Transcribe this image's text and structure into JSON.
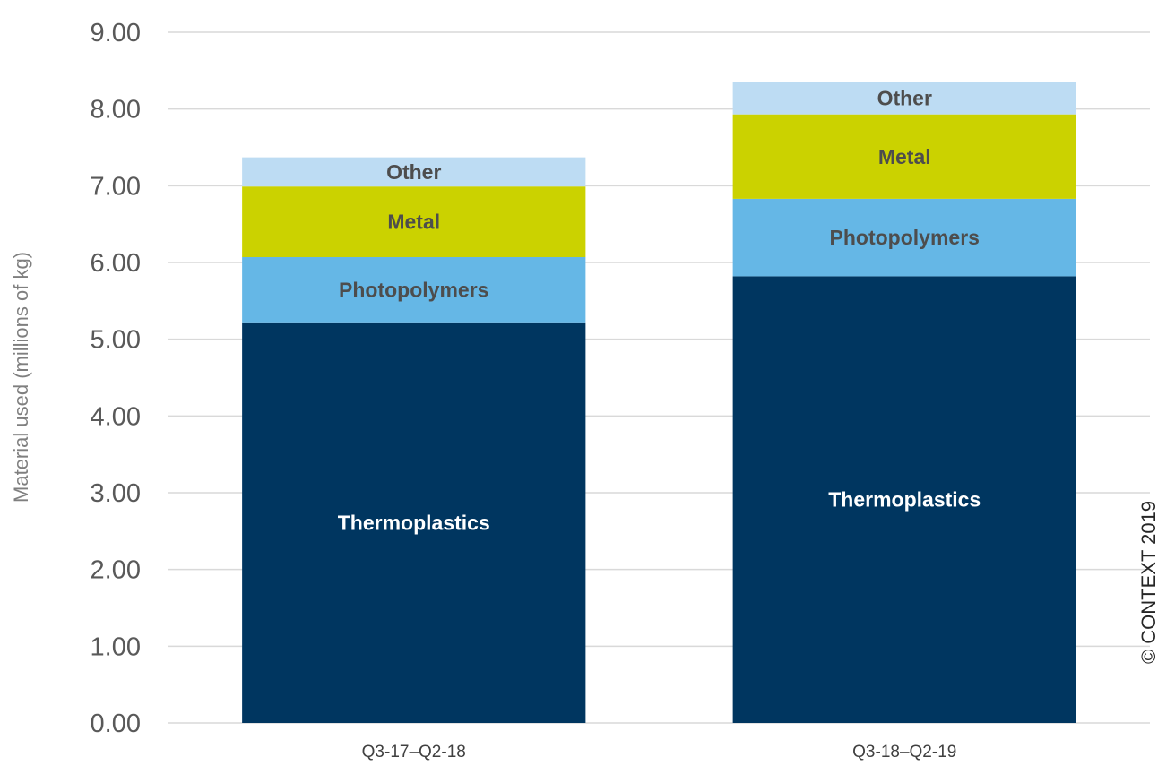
{
  "chart_data": {
    "type": "bar",
    "stacked": true,
    "categories": [
      "Q3-17–Q2-18",
      "Q3-18–Q2-19"
    ],
    "series": [
      {
        "name": "Thermoplastics",
        "values": [
          5.22,
          5.82
        ],
        "color": "#003660",
        "label_color": "#ffffff"
      },
      {
        "name": "Photopolymers",
        "values": [
          0.85,
          1.01
        ],
        "color": "#65b7e6",
        "label_color": "#4d4d4d"
      },
      {
        "name": "Metal",
        "values": [
          0.92,
          1.1
        ],
        "color": "#cbd200",
        "label_color": "#4d4d4d"
      },
      {
        "name": "Other",
        "values": [
          0.38,
          0.42
        ],
        "color": "#bddcf3",
        "label_color": "#4d4d4d"
      }
    ],
    "ylabel": "Material used (millions of kg)",
    "xlabel": "",
    "ylim": [
      0,
      9
    ],
    "yticks": [
      "0.00",
      "1.00",
      "2.00",
      "3.00",
      "4.00",
      "5.00",
      "6.00",
      "7.00",
      "8.00",
      "9.00"
    ],
    "grid": true,
    "legend": "none"
  },
  "copyright": "© CONTEXT 2019"
}
